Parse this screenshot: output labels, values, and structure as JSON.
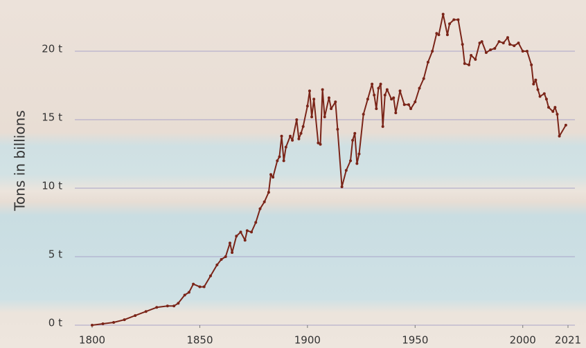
{
  "chart_data": {
    "type": "line",
    "y_label": "Tons in billions",
    "x": [
      1800,
      1805,
      1810,
      1815,
      1820,
      1825,
      1830,
      1835,
      1838,
      1840,
      1843,
      1845,
      1847,
      1850,
      1852,
      1855,
      1858,
      1860,
      1862,
      1864,
      1865,
      1867,
      1869,
      1871,
      1872,
      1874,
      1876,
      1878,
      1880,
      1882,
      1883,
      1884,
      1886,
      1887,
      1888,
      1889,
      1890,
      1892,
      1893,
      1895,
      1896,
      1897,
      1898,
      1900,
      1901,
      1902,
      1903,
      1905,
      1906,
      1907,
      1908,
      1910,
      1911,
      1913,
      1914,
      1916,
      1918,
      1920,
      1921,
      1922,
      1923,
      1924,
      1926,
      1928,
      1930,
      1931,
      1932,
      1933,
      1934,
      1935,
      1936,
      1937,
      1939,
      1940,
      1941,
      1943,
      1945,
      1947,
      1948,
      1950,
      1952,
      1954,
      1956,
      1958,
      1960,
      1961,
      1963,
      1965,
      1966,
      1968,
      1970,
      1972,
      1973,
      1975,
      1976,
      1978,
      1980,
      1981,
      1983,
      1985,
      1987,
      1989,
      1991,
      1993,
      1994,
      1996,
      1998,
      2000,
      2002,
      2004,
      2005,
      2006,
      2007,
      2008,
      2010,
      2011,
      2012,
      2014,
      2015,
      2016,
      2017,
      2020
    ],
    "values": [
      0,
      0.1,
      0.2,
      0.4,
      0.7,
      1.0,
      1.3,
      1.4,
      1.4,
      1.6,
      2.2,
      2.4,
      3.0,
      2.8,
      2.8,
      3.6,
      4.4,
      4.8,
      5.0,
      6.0,
      5.3,
      6.5,
      6.8,
      6.2,
      6.9,
      6.8,
      7.5,
      8.5,
      9.0,
      9.7,
      11.0,
      10.8,
      12.0,
      12.3,
      13.8,
      12.0,
      13.0,
      13.8,
      13.5,
      15.0,
      13.6,
      14.0,
      14.5,
      16.0,
      17.1,
      15.2,
      16.5,
      13.3,
      13.2,
      17.2,
      15.2,
      16.6,
      15.8,
      16.3,
      14.3,
      10.1,
      11.3,
      12.0,
      13.5,
      14.0,
      11.8,
      12.5,
      15.4,
      16.5,
      17.6,
      16.8,
      15.8,
      17.3,
      17.6,
      14.5,
      16.8,
      17.2,
      16.5,
      16.6,
      15.5,
      17.1,
      16.1,
      16.1,
      15.8,
      16.3,
      17.3,
      18.0,
      19.2,
      20.0,
      21.3,
      21.2,
      22.7,
      21.2,
      22.0,
      22.3,
      22.3,
      20.5,
      19.1,
      19.0,
      19.7,
      19.4,
      20.6,
      20.7,
      19.9,
      20.1,
      20.2,
      20.7,
      20.6,
      21.0,
      20.5,
      20.4,
      20.6,
      20.0,
      20.0,
      19.0,
      17.6,
      17.9,
      17.2,
      16.7,
      16.9,
      16.5,
      15.9,
      15.6,
      15.9,
      15.4,
      13.8,
      14.6
    ],
    "color": "#7a2418",
    "xlim": [
      1800,
      2021
    ],
    "xticks": [
      1800,
      1850,
      1900,
      1950,
      2000,
      2021
    ],
    "ylim": [
      0,
      20
    ],
    "yticks": [
      {
        "value": 0,
        "label": "0 t"
      },
      {
        "value": 5,
        "label": "5 t"
      },
      {
        "value": 10,
        "label": "10 t"
      },
      {
        "value": 15,
        "label": "15 t"
      },
      {
        "value": 20,
        "label": "20 t"
      }
    ],
    "grid": true
  }
}
